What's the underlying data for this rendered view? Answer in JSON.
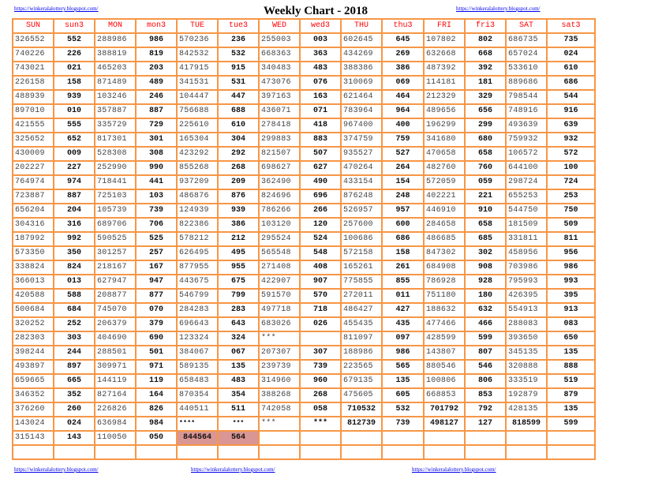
{
  "title": "Weekly Chart - 2018",
  "links": {
    "top_left": "https://winkeralalottery.blogspot.com/",
    "top_right": "https://winkeralalottery.blogspot.com/",
    "bottom_left": "https://winkeralalottery.blogspot.com/",
    "bottom_center": "https://winkeralalottery.blogspot.com/",
    "bottom_right": "https://winkeralalottery.blogspot.com/"
  },
  "colors": {
    "border": "#f79646",
    "header_text": "#ff0000",
    "highlight": "#da9694",
    "link": "#0000ee"
  },
  "columns": [
    "SUN",
    "sun3",
    "MON",
    "mon3",
    "TUE",
    "tue3",
    "WED",
    "wed3",
    "THU",
    "thu3",
    "FRI",
    "fri3",
    "SAT",
    "sat3"
  ],
  "rows": [
    [
      "326552",
      "552",
      "288986",
      "986",
      "570236",
      "236",
      "255003",
      "003",
      "602645",
      "645",
      "107802",
      "802",
      "686735",
      "735"
    ],
    [
      "740226",
      "226",
      "388819",
      "819",
      "842532",
      "532",
      "668363",
      "363",
      "434269",
      "269",
      "632668",
      "668",
      "657024",
      "024"
    ],
    [
      "743021",
      "021",
      "465203",
      "203",
      "417915",
      "915",
      "340483",
      "483",
      "388386",
      "386",
      "487392",
      "392",
      "533610",
      "610"
    ],
    [
      "226158",
      "158",
      "871489",
      "489",
      "341531",
      "531",
      "473076",
      "076",
      "310069",
      "069",
      "114181",
      "181",
      "889686",
      "686"
    ],
    [
      "488939",
      "939",
      "103246",
      "246",
      "104447",
      "447",
      "397163",
      "163",
      "621464",
      "464",
      "212329",
      "329",
      "798544",
      "544"
    ],
    [
      "897010",
      "010",
      "357887",
      "887",
      "756688",
      "688",
      "436071",
      "071",
      "783964",
      "964",
      "489656",
      "656",
      "748916",
      "916"
    ],
    [
      "421555",
      "555",
      "335729",
      "729",
      "225610",
      "610",
      "278418",
      "418",
      "967400",
      "400",
      "196299",
      "299",
      "493639",
      "639"
    ],
    [
      "325652",
      "652",
      "817301",
      "301",
      "165304",
      "304",
      "299883",
      "883",
      "374759",
      "759",
      "341680",
      "680",
      "759932",
      "932"
    ],
    [
      "430009",
      "009",
      "528308",
      "308",
      "423292",
      "292",
      "821507",
      "507",
      "935527",
      "527",
      "470658",
      "658",
      "106572",
      "572"
    ],
    [
      "202227",
      "227",
      "252990",
      "990",
      "855268",
      "268",
      "698627",
      "627",
      "470264",
      "264",
      "482760",
      "760",
      "644100",
      "100"
    ],
    [
      "764974",
      "974",
      "718441",
      "441",
      "937209",
      "209",
      "362490",
      "490",
      "433154",
      "154",
      "572059",
      "059",
      "298724",
      "724"
    ],
    [
      "723887",
      "887",
      "725103",
      "103",
      "486876",
      "876",
      "824696",
      "696",
      "876248",
      "248",
      "402221",
      "221",
      "655253",
      "253"
    ],
    [
      "656204",
      "204",
      "105739",
      "739",
      "124939",
      "939",
      "786266",
      "266",
      "526957",
      "957",
      "446910",
      "910",
      "544750",
      "750"
    ],
    [
      "304316",
      "316",
      "689706",
      "706",
      "822386",
      "386",
      "103120",
      "120",
      "257600",
      "600",
      "284658",
      "658",
      "181509",
      "509"
    ],
    [
      "187992",
      "992",
      "590525",
      "525",
      "578212",
      "212",
      "295524",
      "524",
      "100686",
      "686",
      "486685",
      "685",
      "331811",
      "811"
    ],
    [
      "573350",
      "350",
      "301257",
      "257",
      "626495",
      "495",
      "565548",
      "548",
      "572158",
      "158",
      "847302",
      "302",
      "458956",
      "956"
    ],
    [
      "338824",
      "824",
      "218167",
      "167",
      "877955",
      "955",
      "271408",
      "408",
      "165261",
      "261",
      "684908",
      "908",
      "703986",
      "986"
    ],
    [
      "366013",
      "013",
      "627947",
      "947",
      "443675",
      "675",
      "422907",
      "907",
      "775855",
      "855",
      "786928",
      "928",
      "795993",
      "993"
    ],
    [
      "420588",
      "588",
      "208877",
      "877",
      "546799",
      "799",
      "591570",
      "570",
      "272011",
      "011",
      "751180",
      "180",
      "426395",
      "395"
    ],
    [
      "500684",
      "684",
      "745070",
      "070",
      "284283",
      "283",
      "497718",
      "718",
      "486427",
      "427",
      "188632",
      "632",
      "554913",
      "913"
    ],
    [
      "320252",
      "252",
      "206379",
      "379",
      "696643",
      "643",
      "683026",
      "026",
      "455435",
      "435",
      "477466",
      "466",
      "288083",
      "083"
    ],
    [
      "282303",
      "303",
      "404690",
      "690",
      "123324",
      "324",
      "***",
      "",
      "811097",
      "097",
      "428599",
      "599",
      "393650",
      "650"
    ],
    [
      "398244",
      "244",
      "288501",
      "501",
      "384067",
      "067",
      "207307",
      "307",
      "188986",
      "986",
      "143807",
      "807",
      "345135",
      "135"
    ],
    [
      "493897",
      "897",
      "309971",
      "971",
      "589135",
      "135",
      "239739",
      "739",
      "223565",
      "565",
      "880546",
      "546",
      "320888",
      "888"
    ],
    [
      "659665",
      "665",
      "144119",
      "119",
      "658483",
      "483",
      "314960",
      "960",
      "679135",
      "135",
      "100806",
      "806",
      "333519",
      "519"
    ],
    [
      "346352",
      "352",
      "827164",
      "164",
      "870354",
      "354",
      "388268",
      "268",
      "475605",
      "605",
      "668853",
      "853",
      "192879",
      "879"
    ],
    [
      "376260",
      "260",
      "226826",
      "826",
      "440511",
      "511",
      "742058",
      "058",
      "710532",
      "532",
      "701792",
      "792",
      "428135",
      "135"
    ],
    [
      "143024",
      "024",
      "636984",
      "984",
      "****",
      "***",
      "***",
      "***",
      "812739",
      "739",
      "498127",
      "127",
      "818599",
      "599"
    ],
    [
      "315143",
      "143",
      "110050",
      "050",
      "844564",
      "564",
      "",
      "",
      "",
      "",
      "",
      "",
      "",
      ""
    ],
    [
      "",
      "",
      "",
      "",
      "",
      "",
      "",
      "",
      "",
      "",
      "",
      "",
      "",
      ""
    ]
  ],
  "emphasized_cells": [
    "26-8",
    "26-10",
    "27-8",
    "27-10",
    "27-12",
    "28-4"
  ],
  "highlighted_cells": [
    "28-4",
    "28-5"
  ],
  "small_star_cells": [
    "27-4",
    "27-5"
  ]
}
